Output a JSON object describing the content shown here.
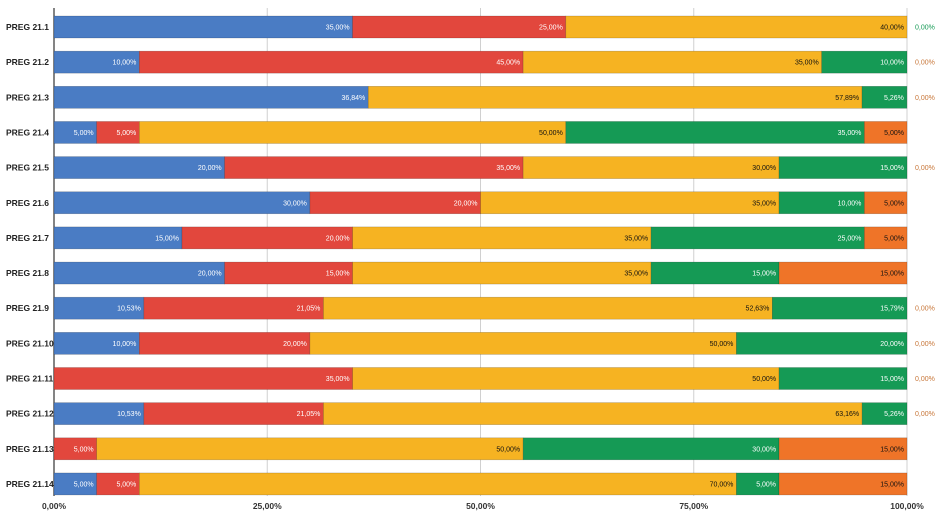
{
  "chart_data": {
    "type": "bar",
    "orientation": "horizontal",
    "stacked": true,
    "categories": [
      "PREG 21.1",
      "PREG 21.2",
      "PREG 21.3",
      "PREG 21.4",
      "PREG 21.5",
      "PREG 21.6",
      "PREG 21.7",
      "PREG 21.8",
      "PREG 21.9",
      "PREG 21.10",
      "PREG 21.11",
      "PREG 21.12",
      "PREG 21.13",
      "PREG 21.14"
    ],
    "series": [
      {
        "color": "#4a7cc4",
        "label_color": "#ffffff",
        "values": [
          35,
          10,
          36.84,
          5,
          20,
          30,
          15,
          20,
          10.53,
          10,
          0,
          10.53,
          0,
          5
        ]
      },
      {
        "color": "#e2473d",
        "label_color": "#ffffff",
        "values": [
          25,
          45,
          0,
          5,
          35,
          20,
          20,
          15,
          21.05,
          20,
          35,
          21.05,
          5,
          5
        ]
      },
      {
        "color": "#f6b322",
        "label_color": "#111111",
        "values": [
          40,
          35,
          57.89,
          50,
          30,
          35,
          35,
          35,
          52.63,
          50,
          50,
          63.16,
          50,
          70
        ]
      },
      {
        "color": "#159a55",
        "label_color": "#ffffff",
        "values": [
          0,
          10,
          5.26,
          35,
          15,
          10,
          25,
          15,
          15.79,
          20,
          15,
          5.26,
          30,
          5
        ]
      },
      {
        "color": "#ef7428",
        "label_color": "#111111",
        "values": [
          0,
          0,
          0,
          5,
          0,
          5,
          5,
          15,
          0,
          0,
          0,
          0,
          15,
          15
        ]
      }
    ],
    "xlim": [
      0,
      100
    ],
    "x_ticks": [
      "0,00%",
      "25,00%",
      "50,00%",
      "75,00%",
      "100,00%"
    ],
    "grid": true,
    "data_labels": true,
    "legend": "none"
  }
}
